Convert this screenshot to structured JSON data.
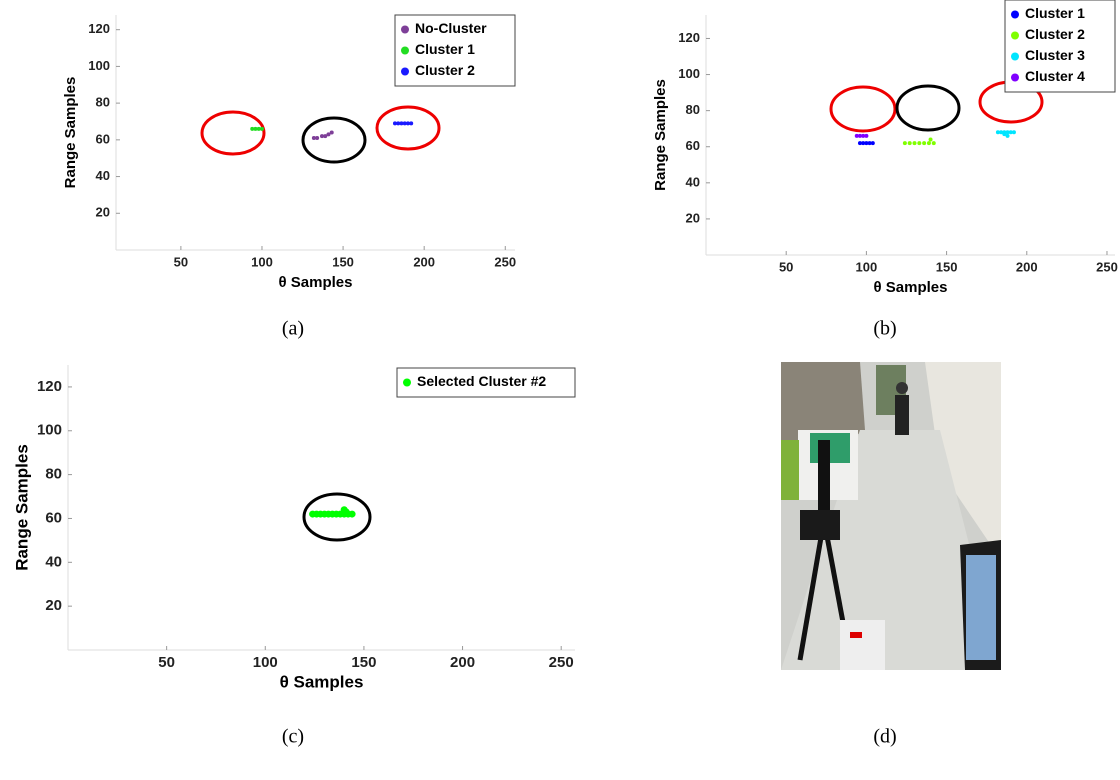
{
  "chart_data": [
    {
      "type": "scatter",
      "xlabel": "θ Samples",
      "ylabel": "Range Samples",
      "xlim": [
        10,
        256
      ],
      "ylim": [
        0,
        128
      ],
      "xticks": [
        50,
        100,
        150,
        200,
        250
      ],
      "yticks": [
        20,
        40,
        60,
        80,
        100,
        120
      ],
      "legend": "upper right",
      "series": [
        {
          "name": "No-Cluster",
          "color": "#7e3f98",
          "x": [
            132,
            134,
            137,
            139,
            141,
            143
          ],
          "y": [
            61,
            61,
            62,
            62,
            63,
            64
          ]
        },
        {
          "name": "Cluster 1",
          "color": "#22dd22",
          "x": [
            94,
            96,
            98,
            100
          ],
          "y": [
            66,
            66,
            66,
            66
          ]
        },
        {
          "name": "Cluster 2",
          "color": "#1a1aff",
          "x": [
            182,
            184,
            186,
            188,
            190,
            192
          ],
          "y": [
            69,
            69,
            69,
            69,
            69,
            69
          ]
        }
      ]
    },
    {
      "type": "scatter",
      "xlabel": "θ Samples",
      "ylabel": "Range Samples",
      "xlim": [
        0,
        255
      ],
      "ylim": [
        0,
        133
      ],
      "xticks": [
        50,
        100,
        150,
        200,
        250
      ],
      "yticks": [
        20,
        40,
        60,
        80,
        100,
        120
      ],
      "legend": "upper right",
      "series": [
        {
          "name": "Cluster 1",
          "color": "#0000ff",
          "x": [
            96,
            98,
            100,
            102,
            104
          ],
          "y": [
            62,
            62,
            62,
            62,
            62
          ]
        },
        {
          "name": "Cluster 2",
          "color": "#80ff00",
          "x": [
            124,
            127,
            130,
            133,
            136,
            139,
            142,
            140
          ],
          "y": [
            62,
            62,
            62,
            62,
            62,
            62,
            62,
            64
          ]
        },
        {
          "name": "Cluster 3",
          "color": "#00e5ff",
          "x": [
            182,
            184,
            186,
            188,
            190,
            192,
            186,
            188
          ],
          "y": [
            68,
            68,
            68,
            68,
            68,
            68,
            67,
            66
          ]
        },
        {
          "name": "Cluster 4",
          "color": "#8000ff",
          "x": [
            94,
            96,
            98,
            100
          ],
          "y": [
            66,
            66,
            66,
            66
          ]
        }
      ]
    },
    {
      "type": "scatter",
      "xlabel": "θ Samples",
      "ylabel": "Range Samples",
      "xlim": [
        0,
        257
      ],
      "ylim": [
        0,
        130
      ],
      "xticks": [
        50,
        100,
        150,
        200,
        250
      ],
      "yticks": [
        20,
        40,
        60,
        80,
        100,
        120
      ],
      "legend": "upper right",
      "series": [
        {
          "name": "Selected Cluster #2",
          "color": "#00ff00",
          "x": [
            124,
            126,
            128,
            130,
            132,
            134,
            136,
            138,
            140,
            142,
            144,
            140,
            141
          ],
          "y": [
            62,
            62,
            62,
            62,
            62,
            62,
            62,
            62,
            62,
            62,
            62,
            64,
            63
          ]
        }
      ]
    }
  ],
  "captions": [
    "(a)",
    "(b)",
    "(c)",
    "(d)"
  ]
}
